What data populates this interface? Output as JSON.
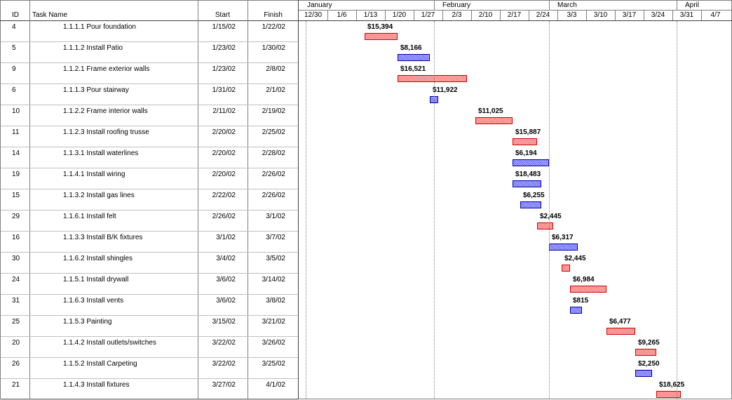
{
  "columns": {
    "id": "ID",
    "task_name": "Task Name",
    "start": "Start",
    "finish": "Finish"
  },
  "months": [
    "January",
    "February",
    "March",
    "April"
  ],
  "weeks": [
    "12/30",
    "1/6",
    "1/13",
    "1/20",
    "1/27",
    "2/3",
    "2/10",
    "2/17",
    "2/24",
    "3/3",
    "3/10",
    "3/17",
    "3/24",
    "3/31",
    "4/7"
  ],
  "tasks": [
    {
      "id": "4",
      "name": "1.1.1.1 Pour foundation",
      "start": "1/15/02",
      "finish": "1/22/02",
      "cost": "$15,394",
      "color": "red"
    },
    {
      "id": "5",
      "name": "1.1.1.2 Install Patio",
      "start": "1/23/02",
      "finish": "1/30/02",
      "cost": "$8,166",
      "color": "blue"
    },
    {
      "id": "9",
      "name": "1.1.2.1 Frame exterior walls",
      "start": "1/23/02",
      "finish": "2/8/02",
      "cost": "$16,521",
      "color": "red"
    },
    {
      "id": "6",
      "name": "1.1.1.3 Pour stairway",
      "start": "1/31/02",
      "finish": "2/1/02",
      "cost": "$11,922",
      "color": "blue"
    },
    {
      "id": "10",
      "name": "1.1.2.2 Frame interior walls",
      "start": "2/11/02",
      "finish": "2/19/02",
      "cost": "$11,025",
      "color": "red"
    },
    {
      "id": "11",
      "name": "1.1.2.3 Install roofing trusse",
      "start": "2/20/02",
      "finish": "2/25/02",
      "cost": "$15,887",
      "color": "red"
    },
    {
      "id": "14",
      "name": "1.1.3.1 Install waterlines",
      "start": "2/20/02",
      "finish": "2/28/02",
      "cost": "$6,194",
      "color": "blue"
    },
    {
      "id": "19",
      "name": "1.1.4.1 Install wiring",
      "start": "2/20/02",
      "finish": "2/26/02",
      "cost": "$18,483",
      "color": "blue"
    },
    {
      "id": "15",
      "name": "1.1.3.2 Install gas lines",
      "start": "2/22/02",
      "finish": "2/26/02",
      "cost": "$6,255",
      "color": "blue"
    },
    {
      "id": "29",
      "name": "1.1.6.1 Install felt",
      "start": "2/26/02",
      "finish": "3/1/02",
      "cost": "$2,445",
      "color": "red"
    },
    {
      "id": "16",
      "name": "1.1.3.3 Install B/K fixtures",
      "start": "3/1/02",
      "finish": "3/7/02",
      "cost": "$6,317",
      "color": "blue"
    },
    {
      "id": "30",
      "name": "1.1.6.2 Install shingles",
      "start": "3/4/02",
      "finish": "3/5/02",
      "cost": "$2,445",
      "color": "red"
    },
    {
      "id": "24",
      "name": "1.1.5.1 Install drywall",
      "start": "3/6/02",
      "finish": "3/14/02",
      "cost": "$6,984",
      "color": "red"
    },
    {
      "id": "31",
      "name": "1.1.6.3 Install vents",
      "start": "3/6/02",
      "finish": "3/8/02",
      "cost": "$815",
      "color": "blue"
    },
    {
      "id": "25",
      "name": "1.1.5.3 Painting",
      "start": "3/15/02",
      "finish": "3/21/02",
      "cost": "$6,477",
      "color": "red"
    },
    {
      "id": "20",
      "name": "1.1.4.2 Install outlets/switches",
      "start": "3/22/02",
      "finish": "3/26/02",
      "cost": "$9,265",
      "color": "red"
    },
    {
      "id": "26",
      "name": "1.1.5.2 Install Carpeting",
      "start": "3/22/02",
      "finish": "3/25/02",
      "cost": "$2,250",
      "color": "blue"
    },
    {
      "id": "21",
      "name": "1.1.4.3 Install fixtures",
      "start": "3/27/02",
      "finish": "4/1/02",
      "cost": "$18,625",
      "color": "red"
    }
  ],
  "colors": {
    "red_fill": "#ff9a9a",
    "red_border": "#d00000",
    "blue_fill": "#8c8cff",
    "blue_border": "#0000b0",
    "grid": "#c0c0c0"
  }
}
